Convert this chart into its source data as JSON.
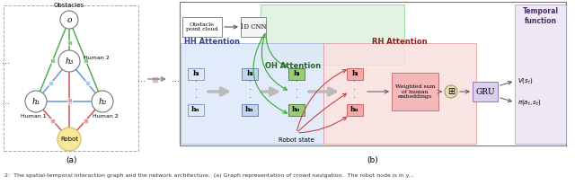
{
  "fig_width": 6.4,
  "fig_height": 2.06,
  "dpi": 100,
  "bg_color": "#ffffff",
  "subfig_a_label": "(a)",
  "subfig_b_label": "(b)",
  "caption": "2:  The spatial-temporal interaction graph and the network architecture.  (a) Graph representation of crowd navigation.  The robot node is in y..."
}
